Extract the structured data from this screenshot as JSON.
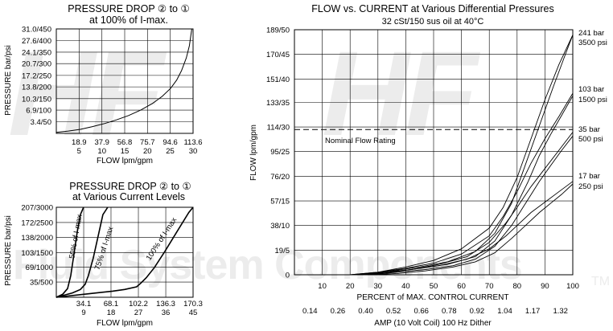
{
  "watermark": {
    "logo_text": "HF",
    "brand_text": "Fluid System Components",
    "tm": "TM"
  },
  "chart_data": [
    {
      "type": "line",
      "title": "PRESSURE DROP ② to ①",
      "subtitle": "at 100% of I-max.",
      "ylabel": "PRESSURE bar/psi",
      "xlabel": "FLOW lpm/gpm",
      "grid": true,
      "x_ticks": [
        {
          "top": "18.9",
          "bottom": "5"
        },
        {
          "top": "37.9",
          "bottom": "10"
        },
        {
          "top": "56.8",
          "bottom": "15"
        },
        {
          "top": "75.7",
          "bottom": "20"
        },
        {
          "top": "94.6",
          "bottom": "25"
        },
        {
          "top": "113.6",
          "bottom": "30"
        }
      ],
      "y_ticks": [
        "3.4/50",
        "6.9/100",
        "10.3/150",
        "13.8/200",
        "17.2/250",
        "20.7/300",
        "24.1/350",
        "27.6/400",
        "31.0/450"
      ],
      "xlim": [
        0,
        113.6
      ],
      "ylim": [
        0,
        31.0
      ],
      "series": [
        {
          "x": [
            0,
            10,
            20,
            30,
            40,
            50,
            60,
            70,
            80,
            88,
            95,
            100,
            104,
            108,
            110.5,
            112.5
          ],
          "y": [
            0.3,
            0.7,
            1.2,
            2.0,
            2.9,
            4.0,
            5.3,
            6.9,
            8.9,
            11.0,
            13.4,
            15.8,
            18.6,
            22.4,
            26.0,
            31.0
          ]
        }
      ]
    },
    {
      "type": "line",
      "title": "PRESSURE DROP ② to ①",
      "subtitle": "at Various Current Levels",
      "ylabel": "PRESSURE bar/psi",
      "xlabel": "FLOW lpm/gpm",
      "grid": true,
      "x_ticks": [
        {
          "top": "34.1",
          "bottom": "9"
        },
        {
          "top": "68.1",
          "bottom": "18"
        },
        {
          "top": "102.2",
          "bottom": "27"
        },
        {
          "top": "136.3",
          "bottom": "36"
        },
        {
          "top": "170.3",
          "bottom": "45"
        }
      ],
      "y_ticks": [
        "35/500",
        "69/1000",
        "103/1500",
        "138/2000",
        "172/2500",
        "207/3000"
      ],
      "xlim": [
        0,
        170.3
      ],
      "ylim": [
        0,
        207
      ],
      "series": [
        {
          "name": "50% of I-max",
          "x": [
            0,
            8,
            14,
            18,
            22,
            26,
            30,
            34
          ],
          "y": [
            0,
            7,
            20,
            50,
            100,
            150,
            190,
            207
          ]
        },
        {
          "name": "75% of I-max",
          "x": [
            0,
            20,
            30,
            36,
            40,
            46,
            52,
            58,
            64
          ],
          "y": [
            0,
            10,
            18,
            30,
            50,
            90,
            140,
            190,
            207
          ]
        },
        {
          "name": "100% of I-max",
          "x": [
            0,
            40,
            70,
            85,
            100,
            105,
            112,
            122,
            135,
            150,
            165,
            170.3
          ],
          "y": [
            0,
            8,
            14,
            18,
            24,
            32,
            45,
            68,
            105,
            150,
            195,
            207
          ]
        }
      ]
    },
    {
      "type": "line",
      "title": "FLOW vs. CURRENT at Various Differential Pressures",
      "subtitle": "32 cSt/150 sus oil at 40°C",
      "ylabel": "FLOW lpm/gpm",
      "xlabel": "PERCENT of MAX. CONTROL CURRENT",
      "x2label": "AMP (10 Volt Coil) 100 Hz Dither",
      "grid": true,
      "x_ticks": [
        "10",
        "20",
        "30",
        "40",
        "50",
        "60",
        "70",
        "80",
        "90",
        "100"
      ],
      "x2_ticks": [
        "0.14",
        "0.26",
        "0.40",
        "0.52",
        "0.66",
        "0.78",
        "0.92",
        "1.04",
        "1.17",
        "1.32"
      ],
      "y_ticks": [
        "0",
        "19/5",
        "38/10",
        "57/15",
        "76/20",
        "95/25",
        "114/30",
        "133/35",
        "151/40",
        "170/45",
        "189/50"
      ],
      "xlim": [
        0,
        100
      ],
      "ylim": [
        0,
        189
      ],
      "nominal_flow": {
        "label": "Nominal Flow Rating",
        "value": 112
      },
      "pressure_labels": [
        {
          "bar": "241 bar",
          "psi": "3500 psi"
        },
        {
          "bar": "103 bar",
          "psi": "1500 psi"
        },
        {
          "bar": "35 bar",
          "psi": "500 psi"
        },
        {
          "bar": "17 bar",
          "psi": "250 psi"
        }
      ],
      "series": [
        {
          "name": "241 bar up",
          "x": [
            20,
            30,
            40,
            50,
            60,
            70,
            75,
            80,
            85,
            90,
            95,
            100
          ],
          "y": [
            0,
            2,
            6,
            11,
            20,
            36,
            52,
            75,
            105,
            135,
            162,
            185
          ]
        },
        {
          "name": "241 bar down",
          "x": [
            25,
            35,
            45,
            55,
            65,
            72,
            78,
            83,
            88,
            93,
            97,
            100
          ],
          "y": [
            0,
            3,
            6,
            10,
            18,
            32,
            55,
            85,
            115,
            145,
            168,
            185
          ]
        },
        {
          "name": "103 bar up",
          "x": [
            20,
            30,
            40,
            50,
            60,
            70,
            75,
            80,
            85,
            90,
            95,
            100
          ],
          "y": [
            0,
            2,
            5,
            9,
            16,
            30,
            45,
            64,
            86,
            105,
            122,
            140
          ]
        },
        {
          "name": "103 bar down",
          "x": [
            25,
            35,
            45,
            55,
            65,
            72,
            78,
            84,
            88,
            92,
            96,
            100
          ],
          "y": [
            0,
            2,
            5,
            8,
            14,
            26,
            46,
            72,
            92,
            108,
            123,
            138
          ]
        },
        {
          "name": "35 bar up",
          "x": [
            22,
            32,
            42,
            52,
            62,
            70,
            76,
            80,
            85,
            90,
            95,
            100
          ],
          "y": [
            0,
            2,
            4,
            8,
            14,
            25,
            40,
            52,
            68,
            82,
            96,
            110
          ]
        },
        {
          "name": "35 bar down",
          "x": [
            27,
            37,
            47,
            57,
            65,
            72,
            78,
            83,
            88,
            92,
            96,
            100
          ],
          "y": [
            0,
            2,
            4,
            7,
            12,
            22,
            38,
            55,
            72,
            84,
            96,
            107
          ]
        },
        {
          "name": "17 bar up",
          "x": [
            22,
            32,
            42,
            52,
            62,
            70,
            76,
            80,
            85,
            90,
            95,
            100
          ],
          "y": [
            0,
            2,
            4,
            7,
            12,
            20,
            30,
            38,
            48,
            56,
            64,
            72
          ]
        },
        {
          "name": "17 bar down",
          "x": [
            27,
            37,
            47,
            57,
            65,
            72,
            78,
            83,
            88,
            92,
            96,
            100
          ],
          "y": [
            0,
            1,
            3,
            6,
            10,
            17,
            28,
            38,
            48,
            55,
            62,
            70
          ]
        }
      ]
    }
  ]
}
